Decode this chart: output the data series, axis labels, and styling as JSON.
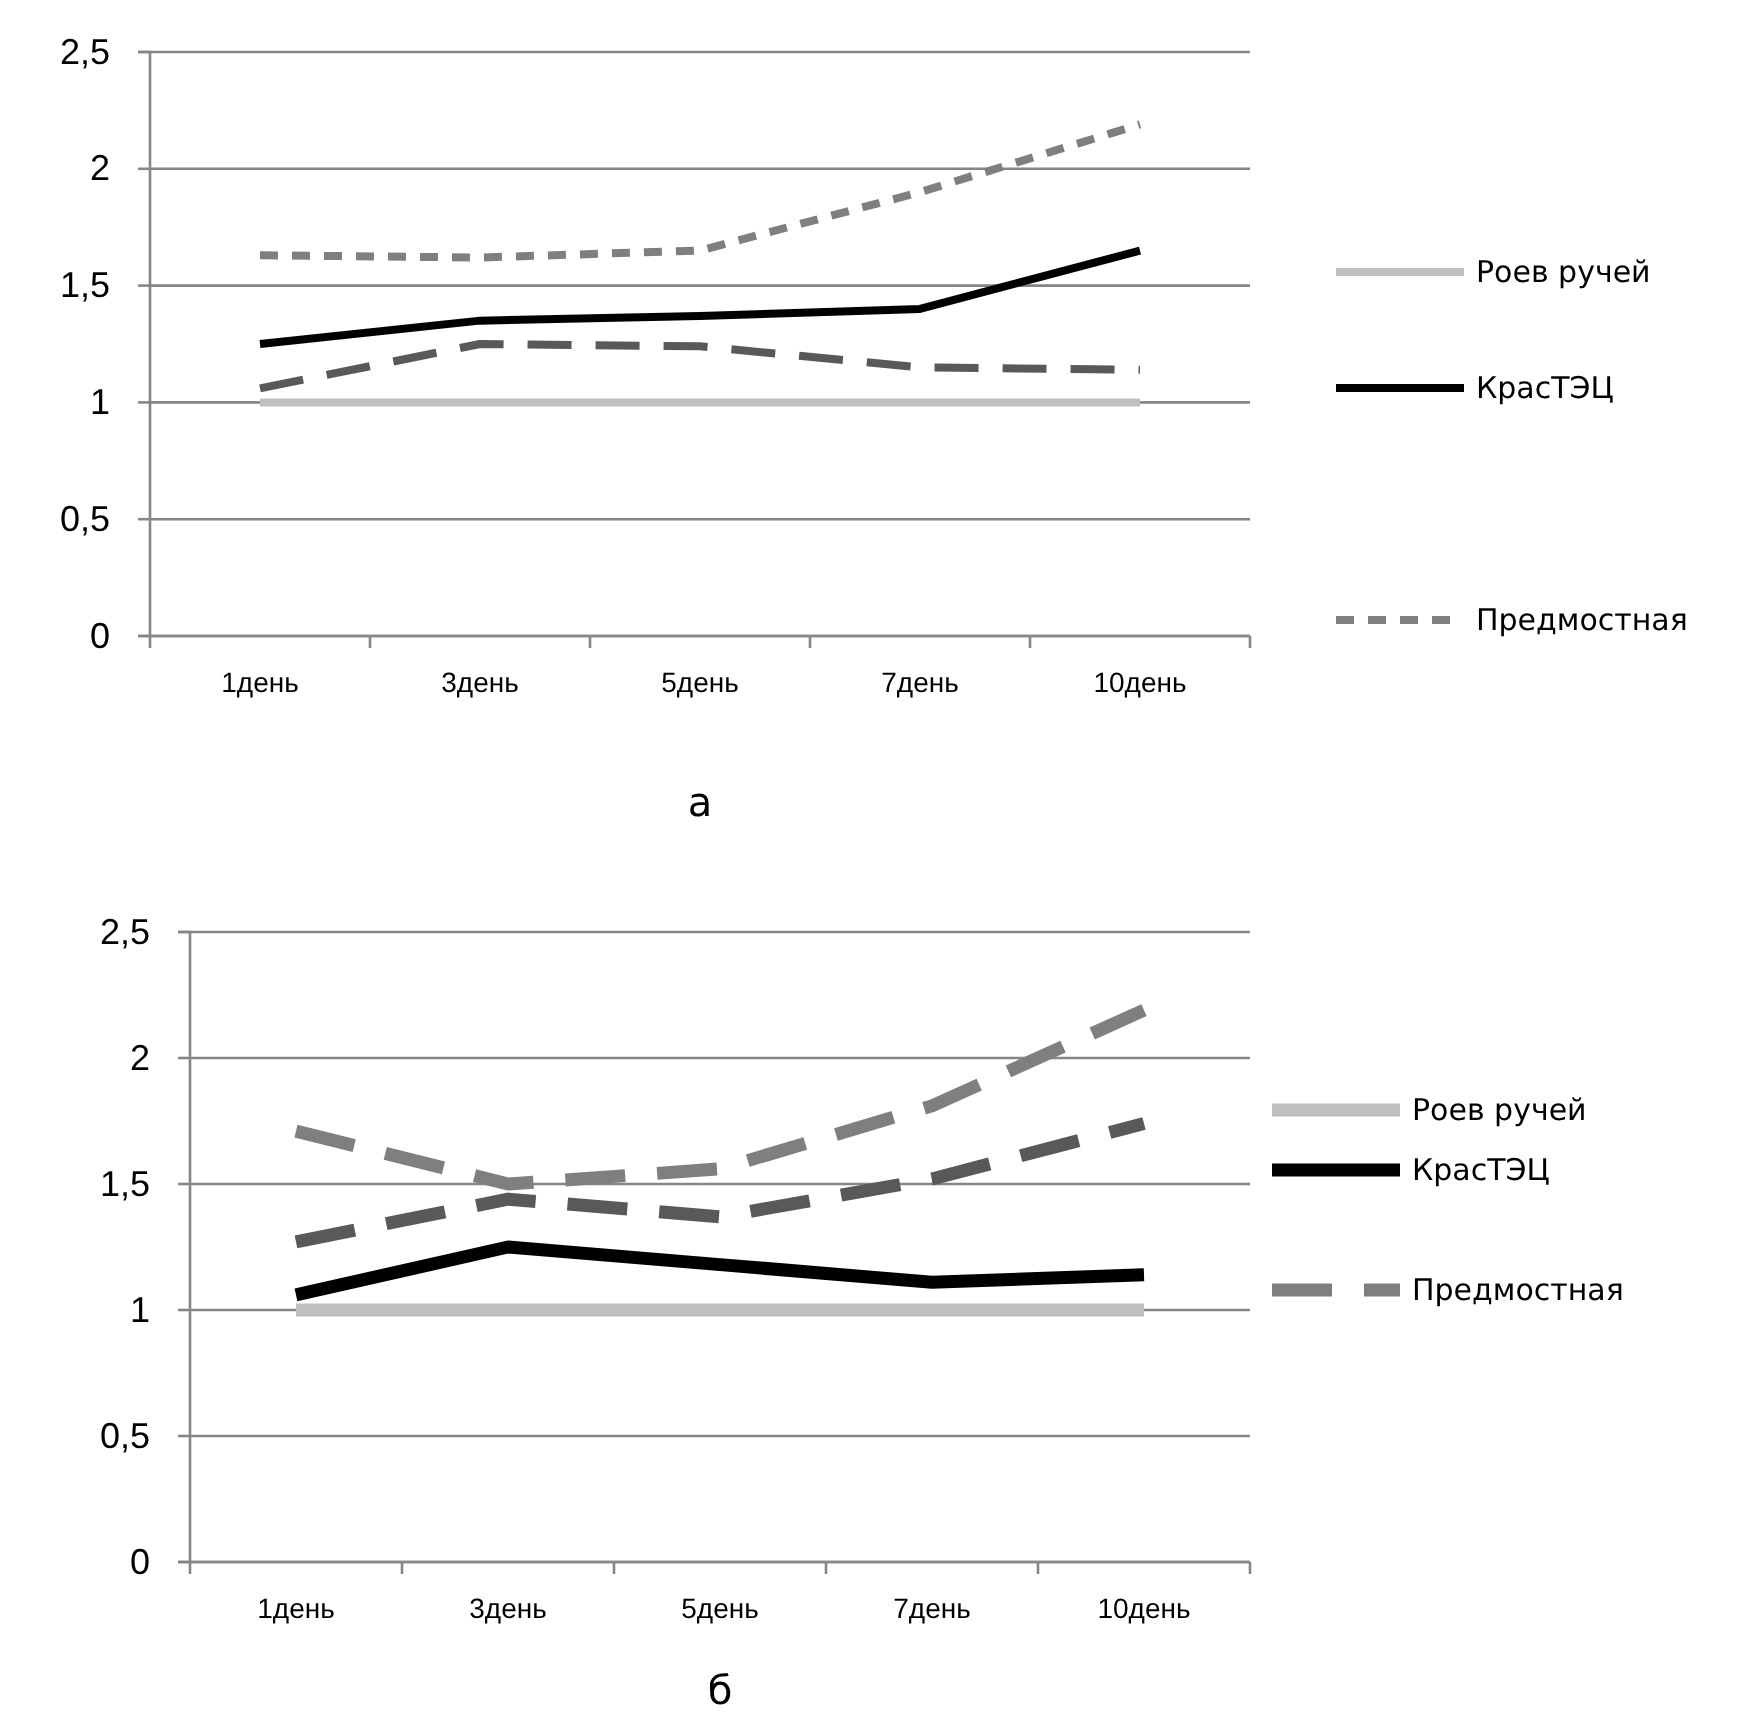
{
  "chart_data": [
    {
      "type": "line",
      "categories": [
        "1день",
        "3день",
        "5день",
        "7день",
        "10день"
      ],
      "series": [
        {
          "name": "Роев ручей",
          "color": "#bfbfbf",
          "line_style": "solid",
          "values": [
            1,
            1,
            1,
            1,
            1
          ]
        },
        {
          "name": "КрасТЭЦ",
          "color": "#000000",
          "line_style": "solid",
          "values": [
            1.25,
            1.35,
            1.37,
            1.4,
            1.65
          ]
        },
        {
          "color": "#595959",
          "line_style": "dashed",
          "values": [
            1.06,
            1.25,
            1.24,
            1.15,
            1.14
          ]
        },
        {
          "name": "Предмостная",
          "color": "#7f7f7f",
          "line_style": "dotted",
          "values": [
            1.63,
            1.62,
            1.65,
            1.9,
            2.19
          ]
        }
      ],
      "ylim": [
        0,
        2.5
      ],
      "yticks": [
        0,
        {
          "value": 0.5,
          "label": "0,5"
        },
        1,
        {
          "value": 1.5,
          "label": "1,5"
        },
        2,
        {
          "value": 2.5,
          "label": "2,5"
        }
      ],
      "grid": "y",
      "legend": "right",
      "annotations": [
        "а"
      ]
    },
    {
      "type": "line",
      "categories": [
        "1день",
        "3день",
        "5день",
        "7день",
        "10день"
      ],
      "series": [
        {
          "name": "Роев ручей",
          "color": "#bfbfbf",
          "line_style": "solid",
          "values": [
            1,
            1,
            1,
            1,
            1
          ]
        },
        {
          "name": "КрасТЭЦ",
          "color": "#000000",
          "line_style": "solid",
          "values": [
            1.06,
            1.25,
            1.18,
            1.11,
            1.14
          ]
        },
        {
          "color": "#595959",
          "line_style": "dashed",
          "values": [
            1.27,
            1.44,
            1.37,
            1.52,
            1.74
          ]
        },
        {
          "name": "Предмостная",
          "color": "#7f7f7f",
          "line_style": "dashed",
          "values": [
            1.71,
            1.5,
            1.56,
            1.81,
            2.19
          ]
        }
      ],
      "ylim": [
        0,
        2.5
      ],
      "yticks": [
        0,
        {
          "value": 0.5,
          "label": "0,5"
        },
        1,
        {
          "value": 1.5,
          "label": "1,5"
        },
        2,
        {
          "value": 2.5,
          "label": "2,5"
        }
      ],
      "grid": "y",
      "legend": "right",
      "annotations": [
        "б"
      ]
    }
  ]
}
